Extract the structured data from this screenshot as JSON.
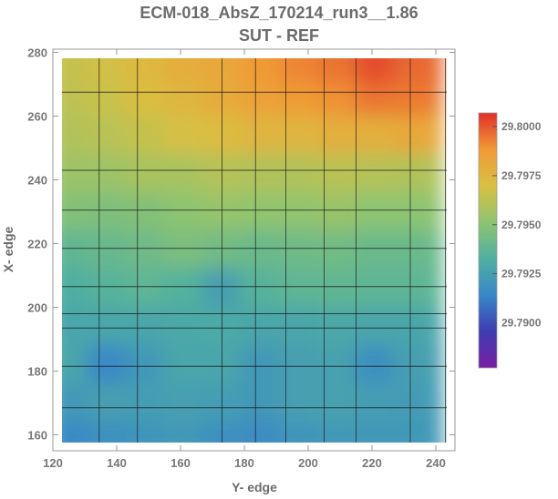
{
  "chart_data": {
    "type": "heatmap",
    "title": "ECM-018_AbsZ_170214_run3__1.86",
    "subtitle": "SUT - REF",
    "xlabel": "Y- edge",
    "ylabel": "X- edge",
    "xlim": [
      120,
      246
    ],
    "ylim": [
      155,
      281
    ],
    "x_ticks": [
      120,
      140,
      160,
      180,
      200,
      220,
      240
    ],
    "y_ticks": [
      160,
      180,
      200,
      220,
      240,
      260,
      280
    ],
    "colorbar": {
      "min": 29.7877,
      "max": 29.8007,
      "ticks": [
        29.79,
        29.7925,
        29.795,
        29.7975,
        29.8
      ],
      "tick_labels": [
        "29.7900",
        "29.7925",
        "29.7950",
        "29.7975",
        "29.8000"
      ],
      "colors": [
        "#7a1fa2",
        "#3d3db0",
        "#3a87c8",
        "#4fb0a0",
        "#8ec470",
        "#d9c042",
        "#f09a36",
        "#e0302a"
      ]
    },
    "grid_x": [
      134.5,
      146.5,
      173,
      183.5,
      193,
      205,
      215,
      232,
      243
    ],
    "grid_y": [
      168.5,
      181.5,
      193.5,
      198,
      206.5,
      218.5,
      230.5,
      243,
      267.5
    ],
    "grid": true,
    "values": [
      [
        29.7915,
        29.7918,
        29.792,
        29.7922,
        29.7918,
        29.7916,
        29.792,
        29.7922,
        29.7922,
        29.7922
      ],
      [
        29.7922,
        29.7925,
        29.7924,
        29.7925,
        29.7924,
        29.7922,
        29.7925,
        29.7926,
        29.7924,
        29.7923
      ],
      [
        29.7928,
        29.7915,
        29.7922,
        29.7928,
        29.7928,
        29.7922,
        29.7925,
        29.7926,
        29.7918,
        29.7925
      ],
      [
        29.7928,
        29.7928,
        29.7928,
        29.7929,
        29.793,
        29.7928,
        29.7928,
        29.7929,
        29.7928,
        29.7928
      ],
      [
        29.7932,
        29.7935,
        29.7937,
        29.7934,
        29.7925,
        29.7935,
        29.7937,
        29.7938,
        29.7937,
        29.7937
      ],
      [
        29.7938,
        29.794,
        29.7942,
        29.7946,
        29.7943,
        29.7941,
        29.7942,
        29.7943,
        29.7941,
        29.7941
      ],
      [
        29.7948,
        29.7947,
        29.7948,
        29.7951,
        29.7953,
        29.7952,
        29.7952,
        29.7954,
        29.7951,
        29.7951
      ],
      [
        29.7955,
        29.7955,
        29.7958,
        29.7958,
        29.7961,
        29.796,
        29.796,
        29.7962,
        29.7961,
        29.796
      ],
      [
        29.796,
        29.7962,
        29.7965,
        29.7969,
        29.7972,
        29.7975,
        29.7975,
        29.7978,
        29.7978,
        29.7982
      ],
      [
        29.7963,
        29.7966,
        29.7971,
        29.7975,
        29.798,
        29.7985,
        29.7988,
        29.799,
        29.7995,
        29.7994
      ],
      [
        29.7965,
        29.7968,
        29.7974,
        29.7979,
        29.7982,
        29.7988,
        29.7992,
        29.7995,
        29.8002,
        29.7997
      ]
    ],
    "cells_x": [
      126.5,
      138.5,
      150.5,
      162.5,
      174.5,
      186.5,
      198.5,
      210.5,
      222.5,
      234.5
    ],
    "cells_y": [
      160,
      172,
      184,
      196,
      208,
      220,
      232,
      244,
      256,
      268,
      278
    ]
  }
}
